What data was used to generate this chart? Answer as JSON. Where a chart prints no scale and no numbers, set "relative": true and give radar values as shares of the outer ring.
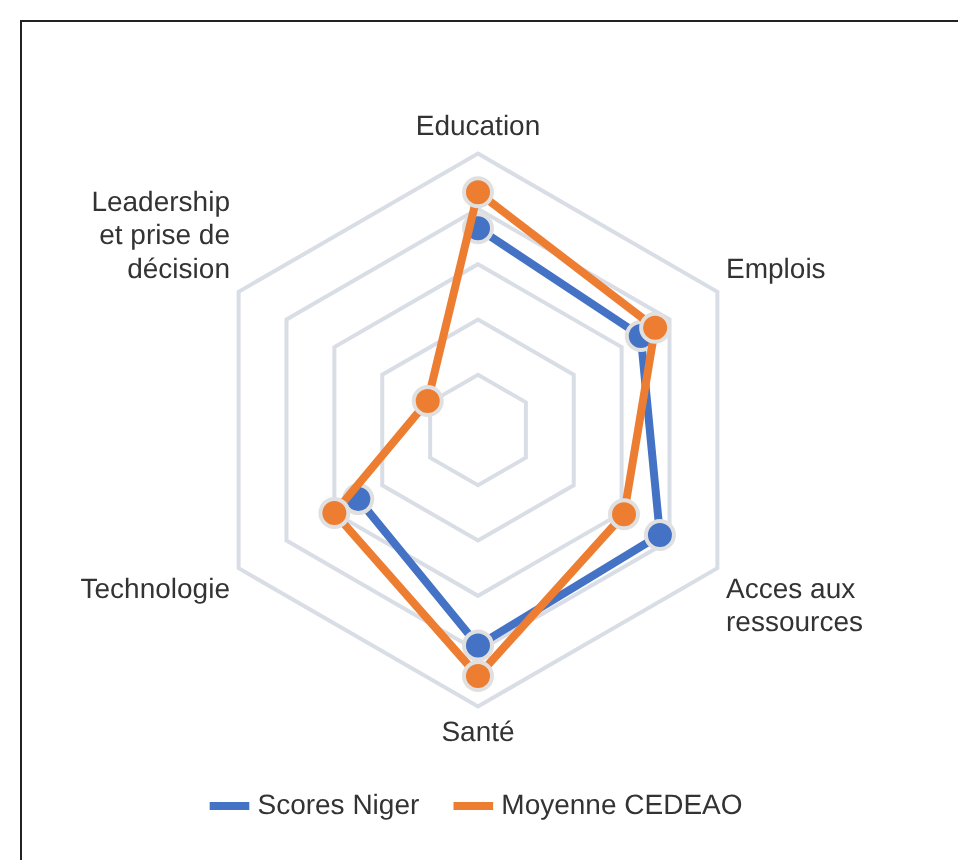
{
  "chart_data": {
    "type": "radar",
    "relative": true,
    "categories": [
      "Education",
      "Emplois",
      "Acces aux ressources",
      "Santé",
      "Technologie",
      "Leadership et prise de décision"
    ],
    "series": [
      {
        "name": "Scores Niger",
        "color": "#4472c4",
        "values": [
          0.73,
          0.68,
          0.76,
          0.78,
          0.5,
          null
        ]
      },
      {
        "name": "Moyenne CEDEAO",
        "color": "#ed7d31",
        "values": [
          0.86,
          0.74,
          0.61,
          0.89,
          0.6,
          0.21
        ]
      }
    ],
    "grid": true,
    "legend": "bottom",
    "marker": "circle",
    "line_style": "solid"
  }
}
